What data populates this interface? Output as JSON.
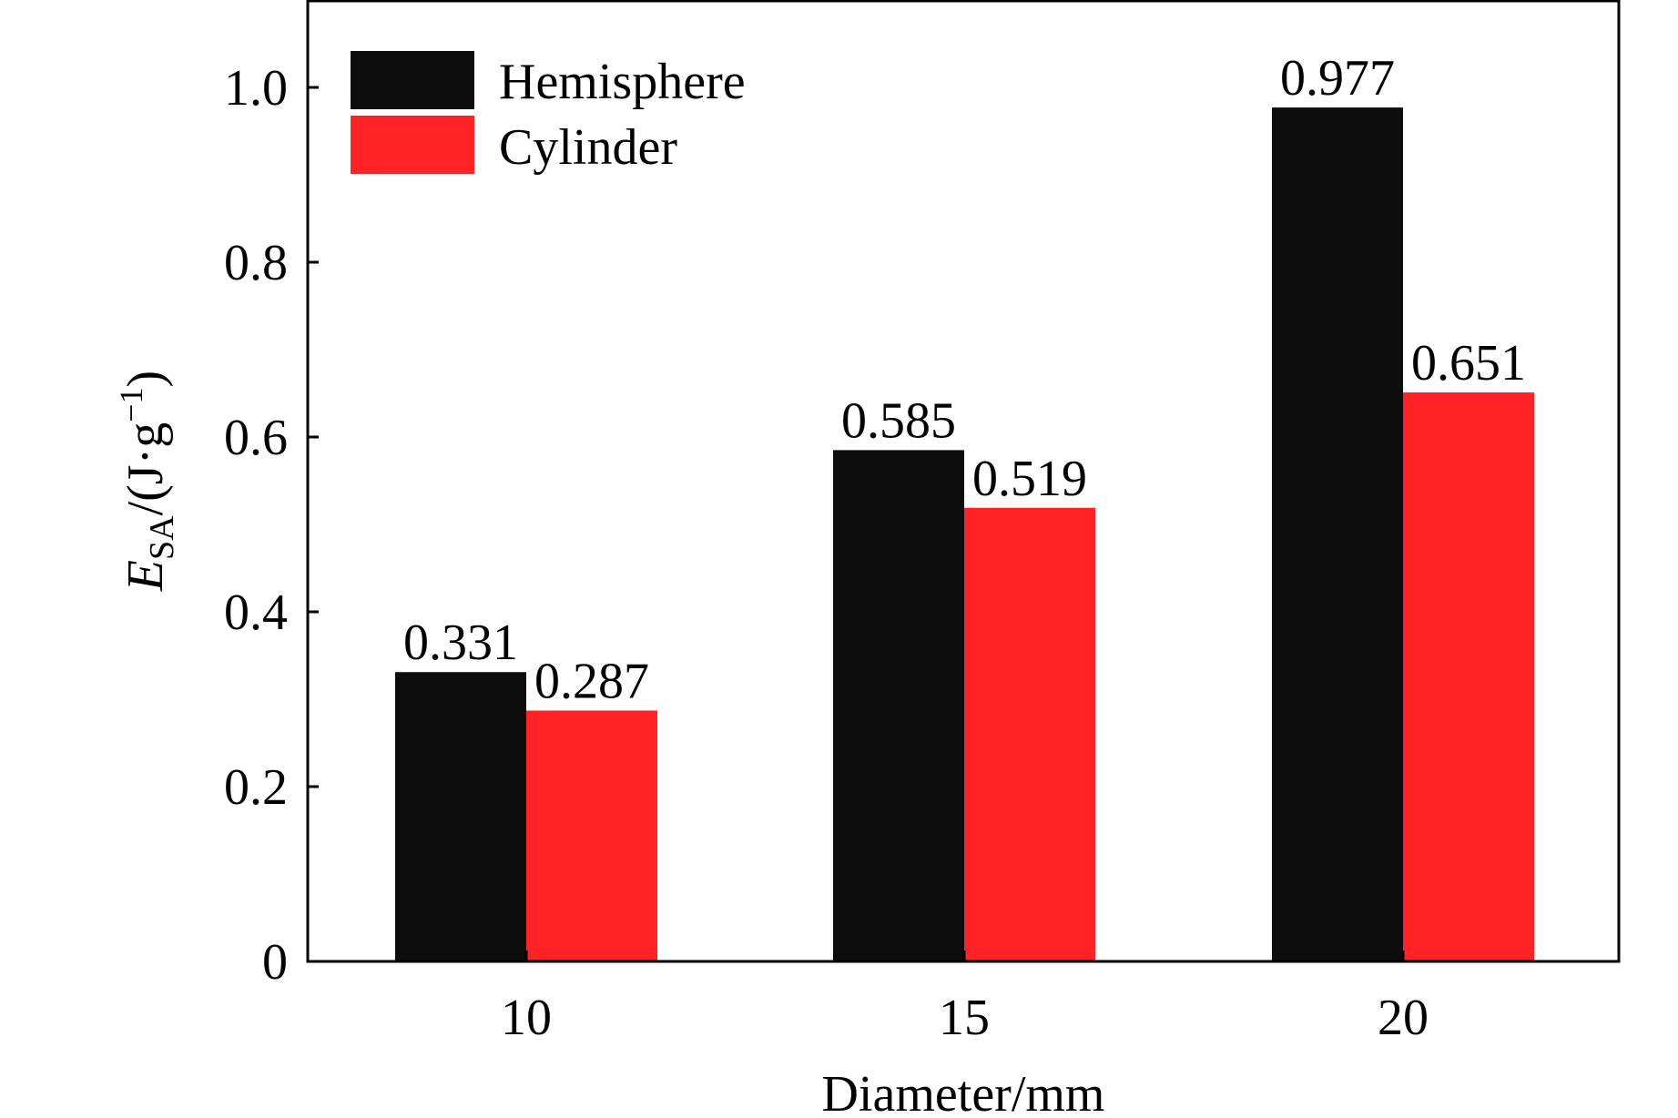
{
  "chart_data": {
    "type": "bar",
    "categories": [
      "10",
      "15",
      "20"
    ],
    "series": [
      {
        "name": "Hemisphere",
        "values": [
          0.331,
          0.585,
          0.977
        ],
        "labels": [
          "0.331",
          "0.585",
          "0.977"
        ],
        "color": "#0d0d0d"
      },
      {
        "name": "Cylinder",
        "values": [
          0.287,
          0.519,
          0.651
        ],
        "labels": [
          "0.287",
          "0.519",
          "0.651"
        ],
        "color": "#ff2227"
      }
    ],
    "xlabel": "Diameter/mm",
    "ylabel": {
      "main": "E",
      "sub": "SA",
      "mid": "/(J·g",
      "sup": "−1",
      "end": ")"
    },
    "ylim": [
      0,
      1.1
    ],
    "yticks": [
      0,
      0.2,
      0.4,
      0.6,
      0.8,
      1.0
    ],
    "ytick_labels": [
      "0",
      "0.2",
      "0.4",
      "0.6",
      "0.8",
      "1.0"
    ],
    "legend_position": "top-left",
    "grid": false
  }
}
